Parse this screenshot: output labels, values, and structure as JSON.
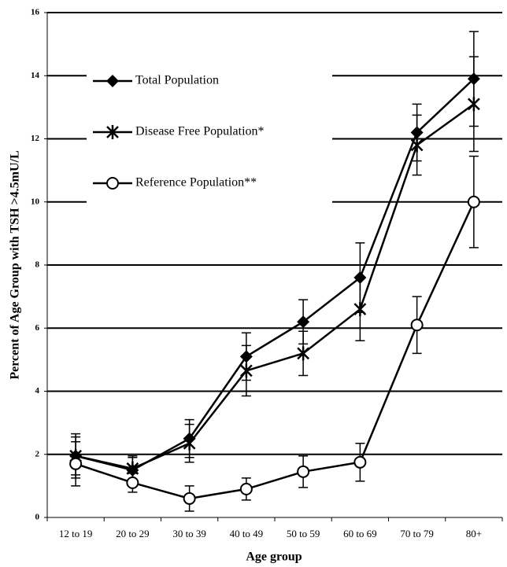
{
  "chart_data": {
    "type": "line",
    "x_label": "Age group",
    "y_label": "Percent of Age Group with TSH >4.5mU/L",
    "categories": [
      "12 to 19",
      "20 to 29",
      "30 to 39",
      "40 to 49",
      "50 to 59",
      "60 to 69",
      "70 to 79",
      "80+"
    ],
    "ylim": [
      0,
      16
    ],
    "yticks": [
      0,
      2,
      4,
      6,
      8,
      10,
      12,
      14,
      16
    ],
    "grid": true,
    "legend": "upper left",
    "series": [
      {
        "name": "Total Population",
        "color": "#000000",
        "marker": "diamond",
        "values": [
          1.95,
          1.5,
          2.5,
          5.1,
          6.2,
          7.6,
          12.2,
          13.9
        ],
        "errors": [
          0.7,
          0.4,
          0.6,
          0.75,
          0.7,
          1.1,
          0.9,
          1.5
        ]
      },
      {
        "name": "Disease Free Population*",
        "color": "#000000",
        "marker": "star",
        "values": [
          1.95,
          1.55,
          2.35,
          4.65,
          5.2,
          6.6,
          11.8,
          13.1
        ],
        "errors": [
          0.6,
          0.4,
          0.6,
          0.8,
          0.7,
          1.0,
          0.95,
          1.5
        ]
      },
      {
        "name": "Reference Population**",
        "color": "#000000",
        "marker": "circle",
        "values": [
          1.7,
          1.1,
          0.6,
          0.9,
          1.45,
          1.75,
          6.1,
          10.0
        ],
        "errors": [
          0.7,
          0.3,
          0.4,
          0.35,
          0.5,
          0.6,
          0.9,
          1.45
        ]
      }
    ]
  }
}
